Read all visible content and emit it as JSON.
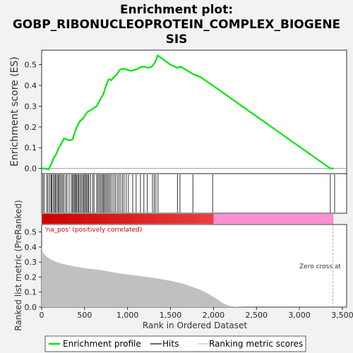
{
  "title_lines": [
    "Enrichment plot:",
    "GOBP_RIBONUCLEOPROTEIN_COMPLEX_BIOGENE",
    "SIS"
  ],
  "colors": {
    "es_line": "#00e600",
    "hits": "#000000",
    "metric_fill": "#c0c0c0",
    "pos_band": "#e31a1c",
    "neg_band": "#ff8fd0",
    "annotation_pos": "#cc0000",
    "zero_line": "#888888"
  },
  "legend": {
    "items": [
      {
        "label": "Enrichment profile",
        "color": "#00e600"
      },
      {
        "label": "Hits",
        "color": "#000000"
      },
      {
        "label": "Ranking metric scores",
        "color": "#c0c0c0"
      }
    ]
  },
  "chart_data": [
    {
      "type": "line",
      "name": "enrichment-profile",
      "ylabel": "Enrichment score (ES)",
      "xlim": [
        0,
        3550
      ],
      "ylim": [
        -0.025,
        0.57
      ],
      "yticks": [
        "0.0",
        "0.1",
        "0.2",
        "0.3",
        "0.4",
        "0.5"
      ],
      "grid": false,
      "x": [
        0,
        40,
        80,
        110,
        140,
        170,
        200,
        230,
        260,
        290,
        320,
        360,
        390,
        420,
        450,
        480,
        510,
        540,
        570,
        600,
        640,
        680,
        720,
        750,
        780,
        810,
        840,
        870,
        900,
        930,
        960,
        1000,
        1040,
        1080,
        1120,
        1160,
        1200,
        1240,
        1280,
        1320,
        1350,
        1400,
        1500,
        1580,
        1620,
        1700,
        1760,
        1850,
        1920,
        1990,
        3360,
        3380,
        3400
      ],
      "y": [
        0.0,
        0.0,
        -0.005,
        0.02,
        0.05,
        0.07,
        0.1,
        0.12,
        0.145,
        0.14,
        0.135,
        0.14,
        0.18,
        0.21,
        0.23,
        0.24,
        0.26,
        0.275,
        0.28,
        0.29,
        0.3,
        0.33,
        0.36,
        0.4,
        0.43,
        0.425,
        0.44,
        0.45,
        0.47,
        0.48,
        0.48,
        0.475,
        0.47,
        0.475,
        0.48,
        0.49,
        0.49,
        0.485,
        0.49,
        0.51,
        0.545,
        0.53,
        0.5,
        0.485,
        0.49,
        0.47,
        0.455,
        0.44,
        0.42,
        0.4,
        0.0,
        0.0,
        0.0
      ]
    },
    {
      "type": "line",
      "name": "hits",
      "hit_positions": [
        15,
        30,
        60,
        75,
        95,
        110,
        120,
        135,
        150,
        160,
        175,
        190,
        200,
        215,
        230,
        245,
        260,
        280,
        295,
        320,
        345,
        360,
        370,
        385,
        395,
        405,
        420,
        430,
        445,
        460,
        475,
        490,
        500,
        515,
        525,
        540,
        550,
        570,
        595,
        610,
        640,
        655,
        670,
        685,
        700,
        715,
        725,
        740,
        755,
        770,
        785,
        800,
        820,
        840,
        860,
        880,
        900,
        920,
        940,
        960,
        985,
        1010,
        1060,
        1100,
        1150,
        1190,
        1230,
        1290,
        1310,
        1330,
        1355,
        1580,
        1610,
        1760,
        1990,
        3360,
        3410
      ]
    },
    {
      "type": "area",
      "name": "ranking-metric",
      "xlabel": "Rank in Ordered Dataset",
      "ylabel": "Ranked list metric (PreRanked)",
      "xlim": [
        0,
        3550
      ],
      "ylim": [
        0,
        0.55
      ],
      "xticks": [
        "0",
        "500",
        "1,000",
        "1,500",
        "2,000",
        "2,500",
        "3,000",
        "3,500"
      ],
      "yticks": [
        "0.0",
        "0.1",
        "0.2",
        "0.3",
        "0.4",
        "0.5"
      ],
      "x": [
        0,
        10,
        30,
        60,
        100,
        150,
        200,
        300,
        400,
        500,
        700,
        900,
        1100,
        1300,
        1500,
        1650,
        1750,
        1850,
        1950,
        2050,
        2100,
        2150,
        2200,
        2250,
        2300,
        2400,
        3400
      ],
      "y": [
        0.41,
        0.37,
        0.35,
        0.335,
        0.32,
        0.305,
        0.295,
        0.28,
        0.27,
        0.26,
        0.245,
        0.225,
        0.21,
        0.195,
        0.175,
        0.155,
        0.135,
        0.115,
        0.085,
        0.05,
        0.03,
        0.015,
        0.007,
        0.003,
        0.001,
        0.0,
        0.0
      ],
      "zero_cross": 3390,
      "annotation_pos": "'na_pos' (positively correlated)",
      "annotation_zero": "Zero cross at"
    }
  ]
}
